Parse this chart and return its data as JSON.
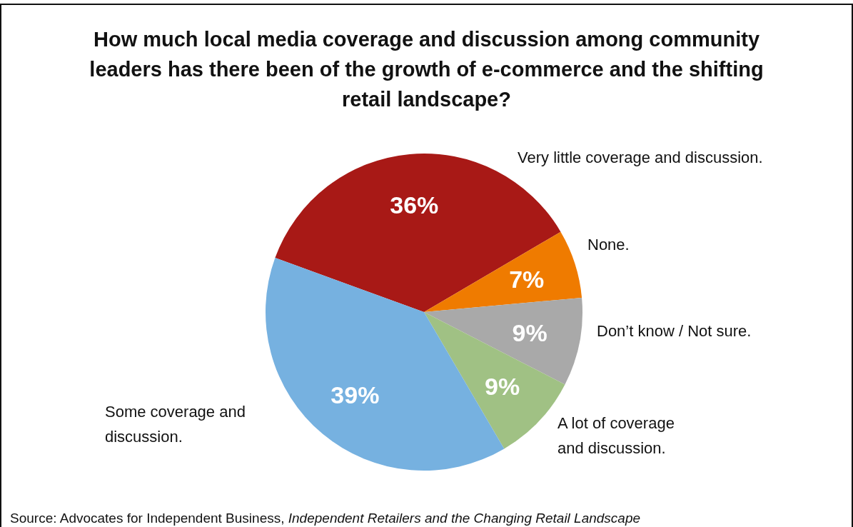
{
  "chart_data": {
    "type": "pie",
    "title": "How much local media coverage and discussion among community leaders has there been of the growth of e-commerce and the shifting retail landscape?",
    "categories": [
      "Very little coverage and discussion.",
      "None.",
      "Don’t know / Not sure.",
      "A lot of coverage and discussion.",
      "Some coverage and discussion."
    ],
    "values": [
      36,
      7,
      9,
      9,
      39
    ],
    "colors": [
      "#a81916",
      "#ef7b00",
      "#a9a9a9",
      "#a0c184",
      "#76b1e0"
    ],
    "value_labels": [
      "36%",
      "7%",
      "9%",
      "9%",
      "39%"
    ],
    "annotations": [
      "Source: Advocates for Independent Business, Independent Retailers and the Changing Retail Landscape"
    ]
  }
}
